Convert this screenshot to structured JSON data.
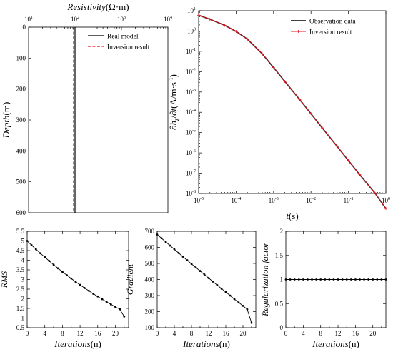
{
  "chart_data": [
    {
      "id": "resistivity",
      "type": "line",
      "xlabel_italic": "Resistivity",
      "xlabel_unit": "(Ω·m)",
      "ylabel_italic": "Depth",
      "ylabel_unit": "(m)",
      "xscale": "log",
      "xlim": [
        10,
        10000
      ],
      "ylim": [
        0,
        600
      ],
      "yinverted": true,
      "x_ticks": [
        "10",
        "10",
        "10",
        "10"
      ],
      "x_tick_exps": [
        "1",
        "2",
        "3",
        "4"
      ],
      "y_ticks": [
        0,
        100,
        200,
        300,
        400,
        500,
        600
      ],
      "legend_position": "top-right",
      "series": [
        {
          "name": "Real model",
          "color": "#000000",
          "dash": "solid",
          "x": [
            100,
            100
          ],
          "y": [
            0,
            600
          ]
        },
        {
          "name": "Inversion result",
          "color": "#e8141e",
          "dash": "dashed",
          "x": [
            93,
            93
          ],
          "y": [
            0,
            600
          ]
        }
      ]
    },
    {
      "id": "dhzdt",
      "type": "line",
      "xlabel_italic": "t",
      "xlabel_unit": "(s)",
      "ylabel_html": "∂h_z/∂t (A/m·s⁻¹)",
      "ylabel_part1": "∂",
      "ylabel_part2": "h",
      "ylabel_part3": "z",
      "ylabel_part4": "/∂",
      "ylabel_part5": "t",
      "ylabel_part6": "(A/m·s",
      "ylabel_part7": "-1",
      "ylabel_part8": ")",
      "xscale": "log",
      "yscale": "log",
      "xlim": [
        1e-05,
        1
      ],
      "ylim": [
        1e-08,
        10
      ],
      "x_tick_exps": [
        "-5",
        "-4",
        "-3",
        "-2",
        "-1",
        "0"
      ],
      "y_tick_exps": [
        "-8",
        "-7",
        "-6",
        "-5",
        "-4",
        "-3",
        "-2",
        "-1",
        "0",
        "1"
      ],
      "tick_base": "10",
      "legend_position": "top-right",
      "series": [
        {
          "name": "Observation data",
          "color": "#000000",
          "marker": "none",
          "x": [
            1e-05,
            2e-05,
            5e-05,
            0.0001,
            0.0002,
            0.0005,
            0.001,
            0.002,
            0.005,
            0.01,
            0.02,
            0.05,
            0.1,
            0.2,
            0.5,
            1
          ],
          "y": [
            6,
            3.8,
            1.9,
            0.95,
            0.4,
            0.075,
            0.016,
            0.0033,
            0.00042,
            8.5e-05,
            1.7e-05,
            2.1e-06,
            4.2e-07,
            8.5e-08,
            1.1e-08,
            1.8e-09
          ]
        },
        {
          "name": "Inversion result",
          "color": "#e8141e",
          "marker": "plus",
          "x": [
            1e-05,
            2e-05,
            5e-05,
            0.0001,
            0.0002,
            0.0005,
            0.001,
            0.002,
            0.005,
            0.01,
            0.02,
            0.05,
            0.1,
            0.2,
            0.5,
            1
          ],
          "y": [
            6,
            3.8,
            1.9,
            0.95,
            0.4,
            0.075,
            0.016,
            0.0033,
            0.00042,
            8.5e-05,
            1.7e-05,
            2.1e-06,
            4.2e-07,
            8.5e-08,
            1.1e-08,
            1.8e-09
          ]
        }
      ]
    },
    {
      "id": "rms",
      "type": "line",
      "xlabel_italic": "Iterations",
      "xlabel_unit": "(n)",
      "ylabel_italic": "RMS",
      "xlim": [
        0,
        23
      ],
      "ylim": [
        0.5,
        5.5
      ],
      "x_ticks": [
        0,
        4,
        8,
        12,
        16,
        20
      ],
      "y_ticks": [
        0.5,
        1,
        1.5,
        2,
        2.5,
        3,
        3.5,
        4,
        4.5,
        5,
        5.5
      ],
      "y_tick_labels": [
        "0.5",
        "1",
        "1.5",
        "2",
        "2.5",
        "3",
        "3.5",
        "4",
        "4.5",
        "5",
        "5.5"
      ],
      "x": [
        0,
        1,
        2,
        3,
        4,
        5,
        6,
        7,
        8,
        9,
        10,
        11,
        12,
        13,
        14,
        15,
        16,
        17,
        18,
        19,
        20,
        21,
        22
      ],
      "values": [
        5.0,
        4.78,
        4.57,
        4.36,
        4.16,
        3.96,
        3.77,
        3.58,
        3.4,
        3.22,
        3.05,
        2.88,
        2.72,
        2.56,
        2.41,
        2.26,
        2.12,
        1.98,
        1.84,
        1.71,
        1.58,
        1.46,
        1.08
      ]
    },
    {
      "id": "gradient",
      "type": "line",
      "xlabel_italic": "Iterations",
      "xlabel_unit": "(n)",
      "ylabel_italic": "Gradient",
      "xlim": [
        0,
        23
      ],
      "ylim": [
        100,
        700
      ],
      "x_ticks": [
        0,
        4,
        8,
        12,
        16,
        20
      ],
      "y_ticks": [
        100,
        200,
        300,
        400,
        500,
        600,
        700
      ],
      "y_tick_labels": [
        "100",
        "200",
        "300",
        "400",
        "500",
        "600",
        "700"
      ],
      "x": [
        0,
        1,
        2,
        3,
        4,
        5,
        6,
        7,
        8,
        9,
        10,
        11,
        12,
        13,
        14,
        15,
        16,
        17,
        18,
        19,
        20,
        21,
        22
      ],
      "values": [
        680,
        657,
        634,
        611,
        588,
        565,
        542,
        520,
        497,
        475,
        453,
        431,
        409,
        387,
        365,
        343,
        322,
        300,
        278,
        257,
        236,
        214,
        130
      ]
    },
    {
      "id": "regularization",
      "type": "line",
      "xlabel_italic": "Iterations",
      "xlabel_unit": "(n)",
      "ylabel_italic": "Regularization factor",
      "xlim": [
        0,
        23
      ],
      "ylim": [
        0,
        2
      ],
      "x_ticks": [
        0,
        4,
        8,
        12,
        16,
        20
      ],
      "y_ticks": [
        0,
        0.5,
        1,
        1.5,
        2
      ],
      "y_tick_labels": [
        "0",
        "0.5",
        "1",
        "1.5",
        "2"
      ],
      "x": [
        0,
        1,
        2,
        3,
        4,
        5,
        6,
        7,
        8,
        9,
        10,
        11,
        12,
        13,
        14,
        15,
        16,
        17,
        18,
        19,
        20,
        21,
        22,
        23
      ],
      "values": [
        1,
        1,
        1,
        1,
        1,
        1,
        1,
        1,
        1,
        1,
        1,
        1,
        1,
        1,
        1,
        1,
        1,
        1,
        1,
        1,
        1,
        1,
        1,
        1
      ]
    }
  ]
}
